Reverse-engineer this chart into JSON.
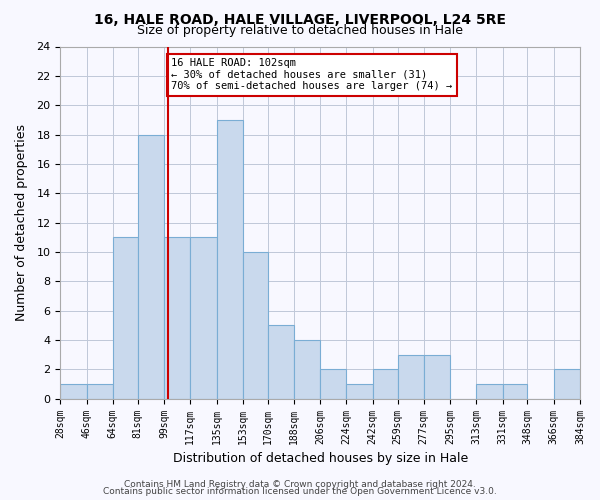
{
  "title": "16, HALE ROAD, HALE VILLAGE, LIVERPOOL, L24 5RE",
  "subtitle": "Size of property relative to detached houses in Hale",
  "xlabel": "Distribution of detached houses by size in Hale",
  "ylabel": "Number of detached properties",
  "bar_edges": [
    28,
    46,
    64,
    81,
    99,
    117,
    135,
    153,
    170,
    188,
    206,
    224,
    242,
    259,
    277,
    295,
    313,
    331,
    348,
    366,
    384
  ],
  "bar_heights": [
    1,
    1,
    11,
    18,
    11,
    11,
    19,
    10,
    5,
    4,
    2,
    1,
    2,
    3,
    3,
    0,
    1,
    1,
    0,
    2
  ],
  "tick_labels": [
    "28sqm",
    "46sqm",
    "64sqm",
    "81sqm",
    "99sqm",
    "117sqm",
    "135sqm",
    "153sqm",
    "170sqm",
    "188sqm",
    "206sqm",
    "224sqm",
    "242sqm",
    "259sqm",
    "277sqm",
    "295sqm",
    "313sqm",
    "331sqm",
    "348sqm",
    "366sqm",
    "384sqm"
  ],
  "bar_color": "#c9d9ed",
  "bar_edge_color": "#7aadd4",
  "property_line_x": 102,
  "property_line_color": "#cc0000",
  "annotation_text": "16 HALE ROAD: 102sqm\n← 30% of detached houses are smaller (31)\n70% of semi-detached houses are larger (74) →",
  "annotation_box_color": "#ffffff",
  "annotation_box_edge": "#cc0000",
  "ylim": [
    0,
    24
  ],
  "yticks": [
    0,
    2,
    4,
    6,
    8,
    10,
    12,
    14,
    16,
    18,
    20,
    22,
    24
  ],
  "footer1": "Contains HM Land Registry data © Crown copyright and database right 2024.",
  "footer2": "Contains public sector information licensed under the Open Government Licence v3.0.",
  "bg_color": "#f8f8ff",
  "grid_color": "#c0c8d8"
}
